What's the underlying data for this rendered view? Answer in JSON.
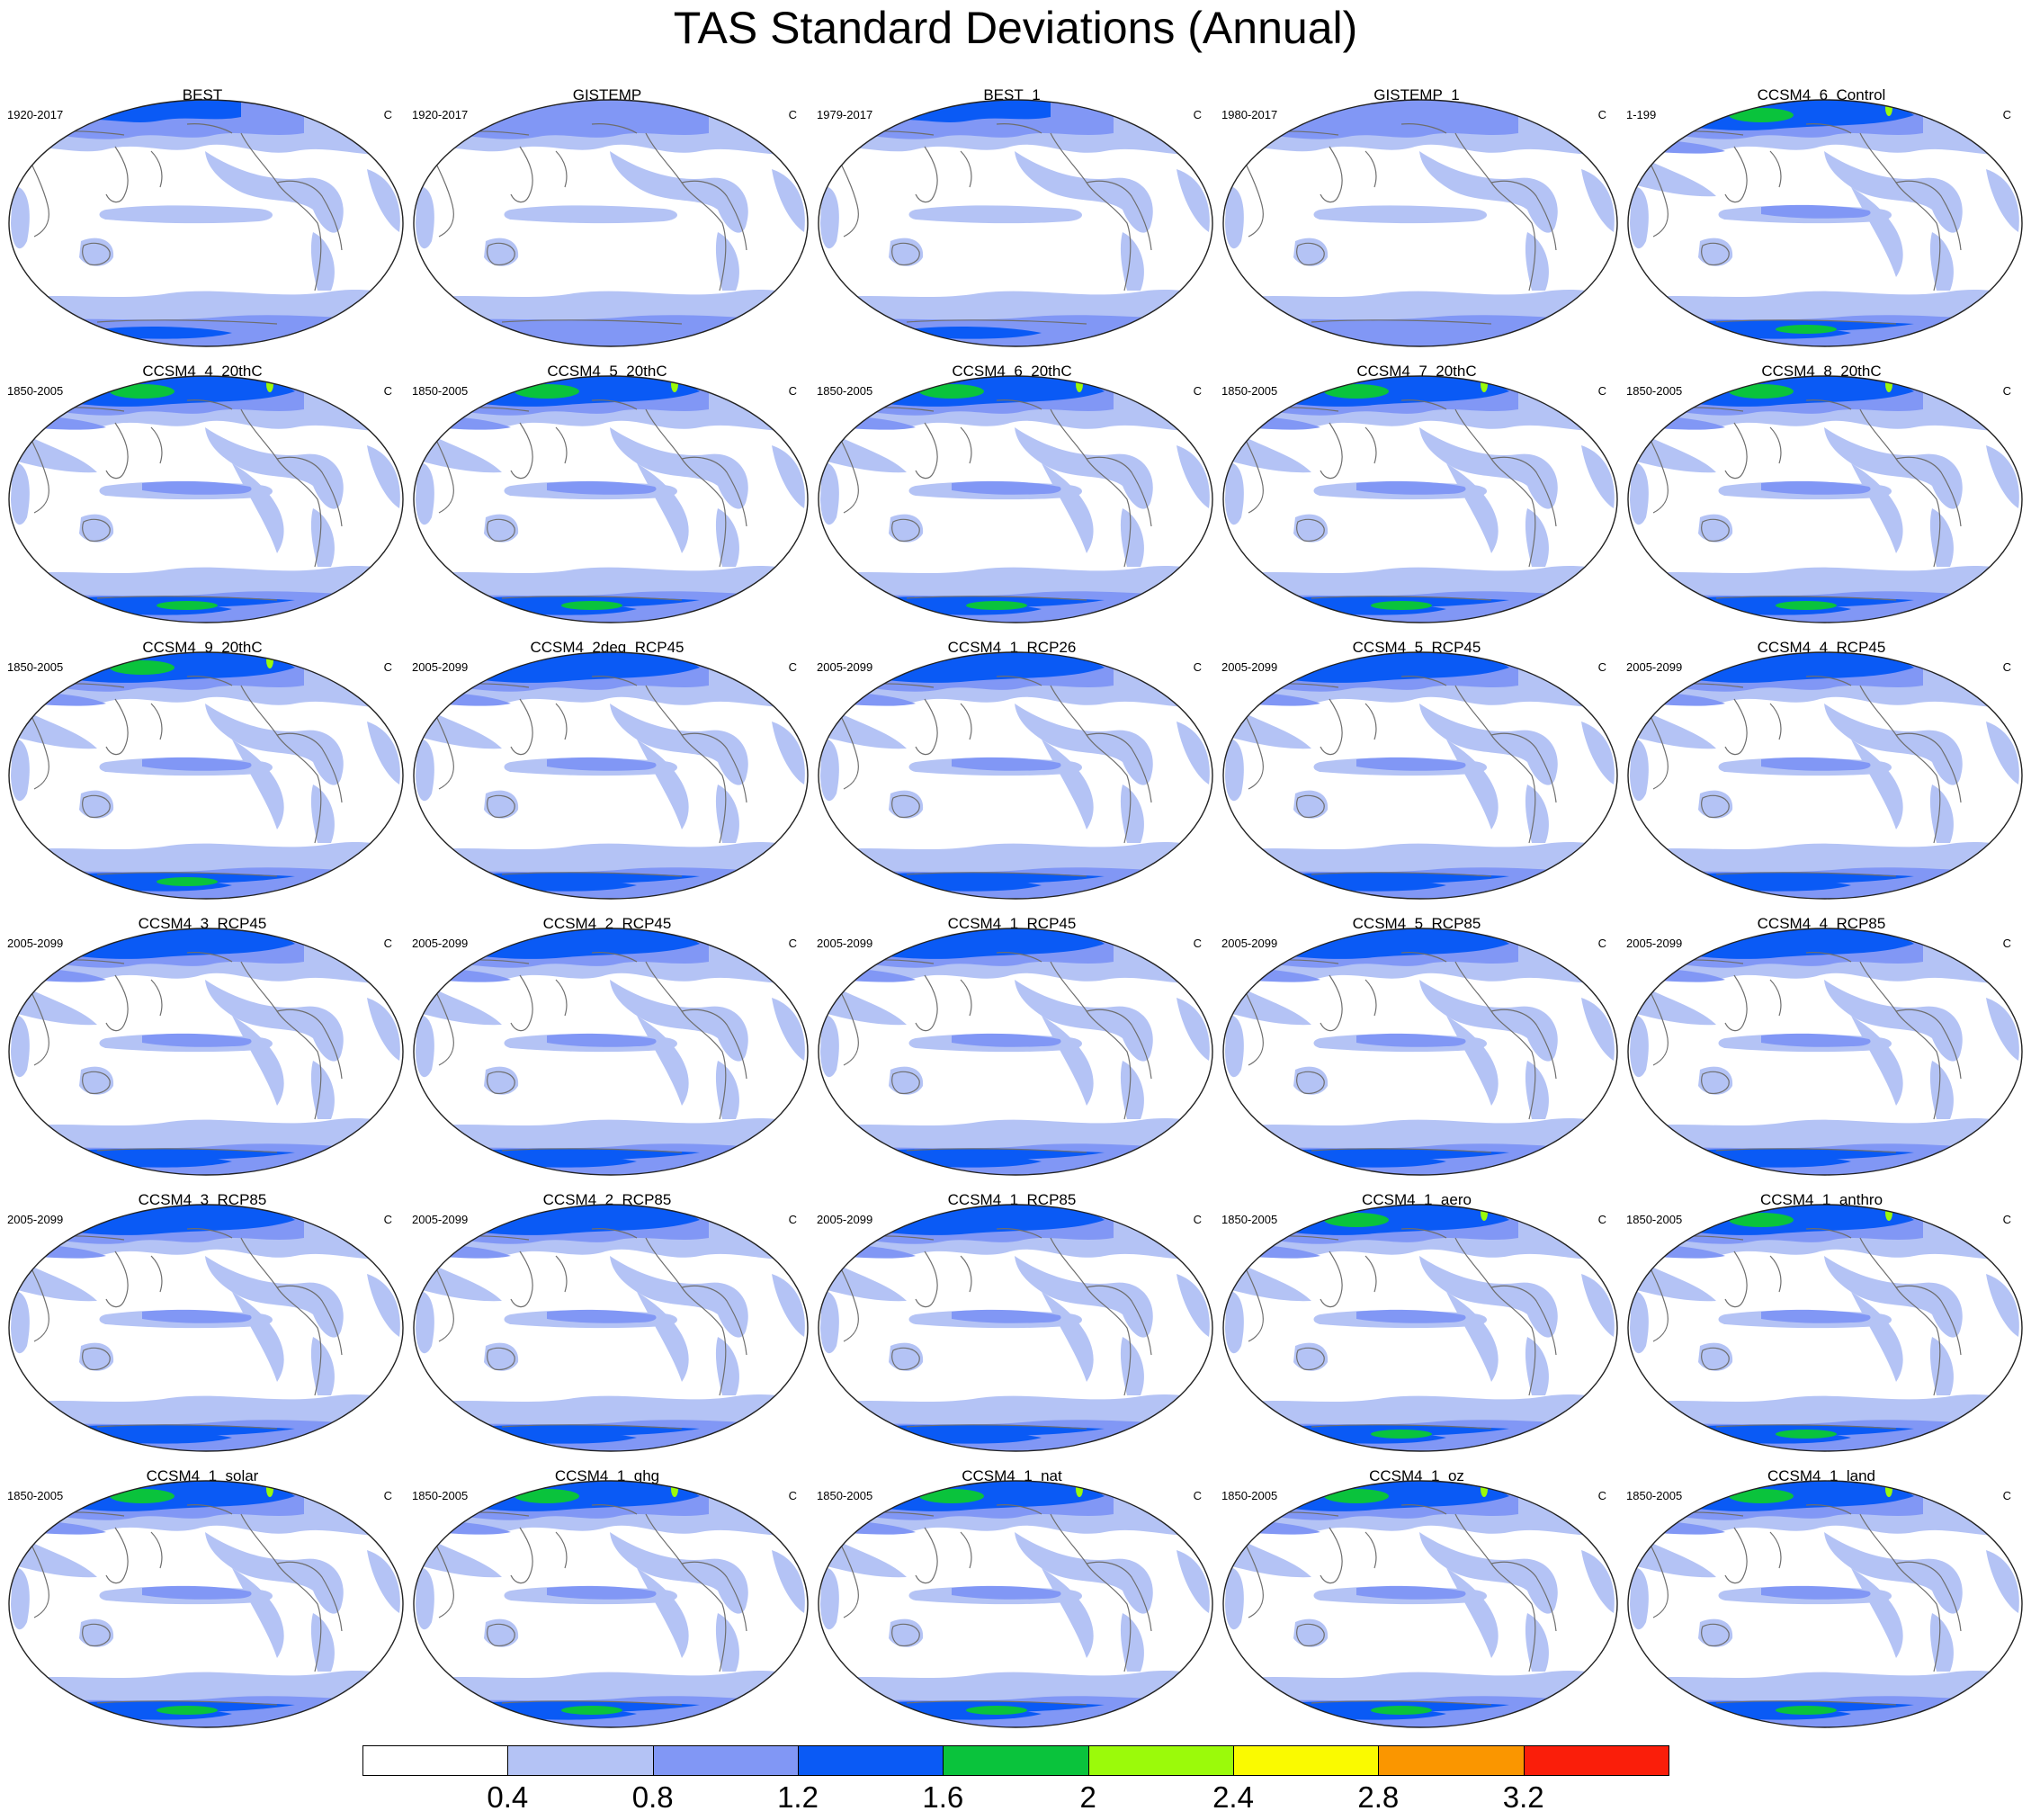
{
  "chart_data": {
    "type": "heatmap",
    "title": "TAS Standard Deviations (Annual)",
    "projection": "Robinson-like world maps, Pacific-centered",
    "panel_unit": "C",
    "panels": [
      {
        "name": "BEST",
        "period": "1920-2017"
      },
      {
        "name": "GISTEMP",
        "period": "1920-2017"
      },
      {
        "name": "BEST_1",
        "period": "1979-2017"
      },
      {
        "name": "GISTEMP_1",
        "period": "1980-2017"
      },
      {
        "name": "CCSM4_6_Control",
        "period": "1-199"
      },
      {
        "name": "CCSM4_4_20thC",
        "period": "1850-2005"
      },
      {
        "name": "CCSM4_5_20thC",
        "period": "1850-2005"
      },
      {
        "name": "CCSM4_6_20thC",
        "period": "1850-2005"
      },
      {
        "name": "CCSM4_7_20thC",
        "period": "1850-2005"
      },
      {
        "name": "CCSM4_8_20thC",
        "period": "1850-2005"
      },
      {
        "name": "CCSM4_9_20thC",
        "period": "1850-2005"
      },
      {
        "name": "CCSM4_2deg_RCP45",
        "period": "2005-2099"
      },
      {
        "name": "CCSM4_1_RCP26",
        "period": "2005-2099"
      },
      {
        "name": "CCSM4_5_RCP45",
        "period": "2005-2099"
      },
      {
        "name": "CCSM4_4_RCP45",
        "period": "2005-2099"
      },
      {
        "name": "CCSM4_3_RCP45",
        "period": "2005-2099"
      },
      {
        "name": "CCSM4_2_RCP45",
        "period": "2005-2099"
      },
      {
        "name": "CCSM4_1_RCP45",
        "period": "2005-2099"
      },
      {
        "name": "CCSM4_5_RCP85",
        "period": "2005-2099"
      },
      {
        "name": "CCSM4_4_RCP85",
        "period": "2005-2099"
      },
      {
        "name": "CCSM4_3_RCP85",
        "period": "2005-2099"
      },
      {
        "name": "CCSM4_2_RCP85",
        "period": "2005-2099"
      },
      {
        "name": "CCSM4_1_RCP85",
        "period": "2005-2099"
      },
      {
        "name": "CCSM4_1_aero",
        "period": "1850-2005"
      },
      {
        "name": "CCSM4_1_anthro",
        "period": "1850-2005"
      },
      {
        "name": "CCSM4_1_solar",
        "period": "1850-2005"
      },
      {
        "name": "CCSM4_1_ghg",
        "period": "1850-2005"
      },
      {
        "name": "CCSM4_1_nat",
        "period": "1850-2005"
      },
      {
        "name": "CCSM4_1_oz",
        "period": "1850-2005"
      },
      {
        "name": "CCSM4_1_land",
        "period": "1850-2005"
      }
    ],
    "colorbar": {
      "levels": [
        "0.4",
        "0.8",
        "1.2",
        "1.6",
        "2",
        "2.4",
        "2.8",
        "3.2"
      ],
      "colors": [
        "#ffffff",
        "#b4c3f5",
        "#8197f5",
        "#0a5af5",
        "#0ac33c",
        "#9bfa0a",
        "#fafa00",
        "#fa9600",
        "#fa1e0a"
      ],
      "placement": "bottom"
    }
  }
}
